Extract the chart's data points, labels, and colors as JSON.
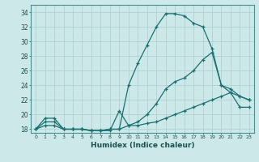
{
  "xlabel": "Humidex (Indice chaleur)",
  "ylabel": "",
  "bg_color": "#cce8e8",
  "grid_color": "#aacece",
  "line_color": "#1a7070",
  "ylim": [
    17.5,
    35.0
  ],
  "xlim": [
    -0.5,
    23.5
  ],
  "yticks": [
    18,
    20,
    22,
    24,
    26,
    28,
    30,
    32,
    34
  ],
  "xticks": [
    0,
    1,
    2,
    3,
    4,
    5,
    6,
    7,
    8,
    9,
    10,
    11,
    12,
    13,
    14,
    15,
    16,
    17,
    18,
    19,
    20,
    21,
    22,
    23
  ],
  "line1_x": [
    0,
    1,
    2,
    3,
    4,
    5,
    6,
    7,
    8,
    9,
    10,
    11,
    12,
    13,
    14,
    15,
    16,
    17,
    18,
    19,
    20,
    21,
    22,
    23
  ],
  "line1_y": [
    18,
    19.5,
    19.5,
    18.0,
    18.0,
    18.0,
    17.8,
    17.8,
    18.0,
    18.0,
    24.0,
    27.0,
    29.5,
    32.0,
    33.8,
    33.8,
    33.5,
    32.5,
    32.0,
    29.0,
    24.0,
    23.0,
    22.5,
    22.0
  ],
  "line2_x": [
    0,
    1,
    2,
    3,
    4,
    5,
    6,
    7,
    8,
    9,
    10,
    11,
    12,
    13,
    14,
    15,
    16,
    17,
    18,
    19,
    20,
    21,
    22,
    23
  ],
  "line2_y": [
    18.0,
    19.0,
    19.0,
    18.0,
    18.0,
    18.0,
    17.8,
    17.8,
    18.0,
    18.0,
    18.5,
    19.0,
    20.0,
    21.5,
    23.5,
    24.5,
    25.0,
    26.0,
    27.5,
    28.5,
    24.0,
    23.5,
    22.5,
    22.0
  ],
  "line3_x": [
    0,
    1,
    2,
    3,
    4,
    5,
    6,
    7,
    8,
    9,
    10,
    11,
    12,
    13,
    14,
    15,
    16,
    17,
    18,
    19,
    20,
    21,
    22,
    23
  ],
  "line3_y": [
    18.0,
    18.5,
    18.5,
    18.0,
    18.0,
    18.0,
    17.8,
    17.8,
    17.8,
    20.5,
    18.5,
    18.5,
    18.8,
    19.0,
    19.5,
    20.0,
    20.5,
    21.0,
    21.5,
    22.0,
    22.5,
    23.0,
    21.0,
    21.0
  ]
}
